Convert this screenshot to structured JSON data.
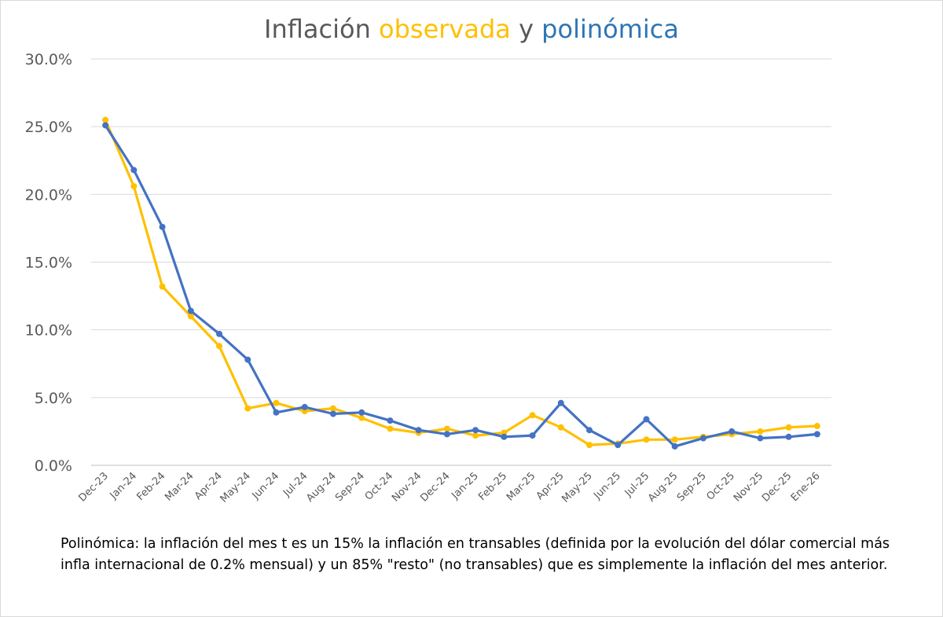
{
  "chart_data": {
    "type": "line",
    "title_parts": {
      "prefix": "Inflación ",
      "observed": "observada",
      "middle": " y ",
      "poly": "polinómica"
    },
    "categories": [
      "Dec-23",
      "Jan-24",
      "Feb-24",
      "Mar-24",
      "Apr-24",
      "May-24",
      "Jun-24",
      "Jul-24",
      "Aug-24",
      "Sep-24",
      "Oct-24",
      "Nov-24",
      "Dec-24",
      "Jan-25",
      "Feb-25",
      "Mar-25",
      "Apr-25",
      "May-25",
      "Jun-25",
      "Jul-25",
      "Aug-25",
      "Sep-25",
      "Oct-25",
      "Nov-25",
      "Dec-25",
      "Ene-26"
    ],
    "series": [
      {
        "name": "observada",
        "color": "#ffc000",
        "values": [
          25.5,
          20.6,
          13.2,
          11.0,
          8.8,
          4.2,
          4.6,
          4.0,
          4.2,
          3.5,
          2.7,
          2.4,
          2.7,
          2.2,
          2.4,
          3.7,
          2.8,
          1.5,
          1.6,
          1.9,
          1.9,
          2.1,
          2.3,
          2.5,
          2.8,
          2.9
        ]
      },
      {
        "name": "polinómica",
        "color": "#4472c4",
        "values": [
          25.1,
          21.8,
          17.6,
          11.4,
          9.7,
          7.8,
          3.9,
          4.3,
          3.8,
          3.9,
          3.3,
          2.6,
          2.3,
          2.6,
          2.1,
          2.2,
          4.6,
          2.6,
          1.5,
          3.4,
          1.4,
          2.0,
          2.5,
          2.0,
          2.1,
          2.3
        ]
      }
    ],
    "y_ticks": [
      "0.0%",
      "5.0%",
      "10.0%",
      "15.0%",
      "20.0%",
      "25.0%",
      "30.0%"
    ],
    "ylim": [
      0,
      30
    ],
    "xlabel": "",
    "ylabel": "",
    "grid": true,
    "title_colors": {
      "text": "#595959",
      "observed": "#ffc000",
      "poly": "#2e75b6"
    }
  },
  "note": "Polinómica: la inflación del mes t es un 15% la inflación en transables (definida por la evolución del dólar comercial más infla internacional de 0.2% mensual) y un 85% \"resto\" (no transables) que es simplemente la inflación del mes anterior."
}
